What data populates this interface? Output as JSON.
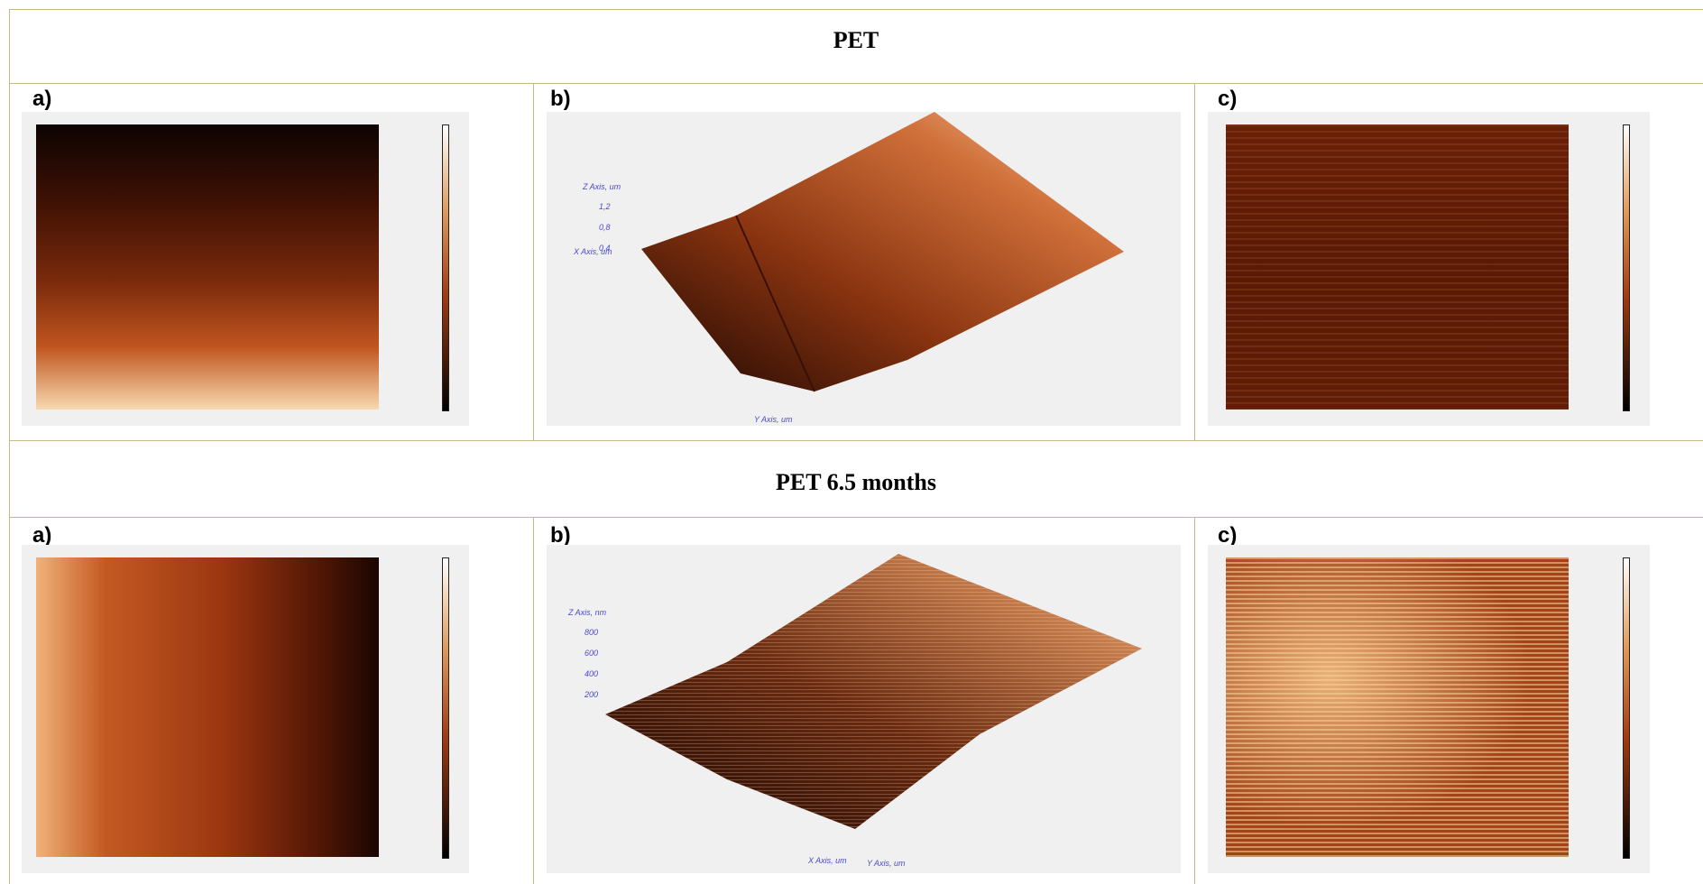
{
  "sections": [
    {
      "title": "PET",
      "panels": [
        {
          "label": "a)"
        },
        {
          "label": "b)",
          "z_axis": "Z Axis, um",
          "z_ticks": [
            "1,2",
            "0,8",
            "0,4"
          ],
          "x_axis": "X Axis, um",
          "y_axis": "Y Axis, um"
        },
        {
          "label": "c)"
        }
      ]
    },
    {
      "title": "PET 6.5 months",
      "panels": [
        {
          "label": "a)"
        },
        {
          "label": "b)",
          "z_axis": "Z Axis, nm",
          "z_ticks": [
            "800",
            "600",
            "400",
            "200"
          ],
          "x_axis": "X Axis, um",
          "y_axis": "Y Axis, um"
        },
        {
          "label": "c)"
        }
      ]
    }
  ]
}
